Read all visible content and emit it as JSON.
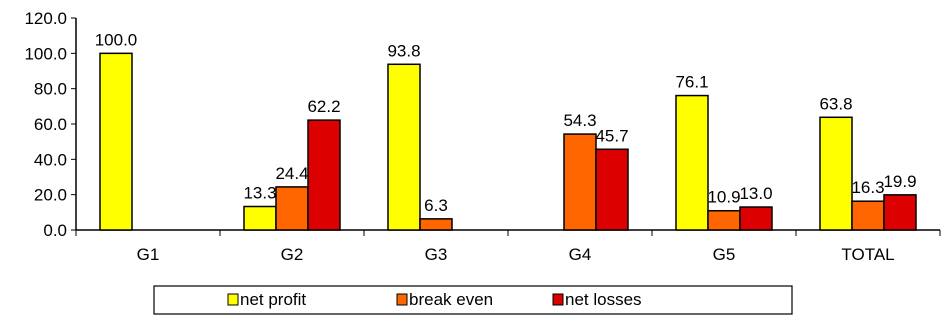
{
  "chart_data": {
    "type": "bar",
    "title": "",
    "xlabel": "",
    "ylabel": "",
    "categories": [
      "G1",
      "G2",
      "G3",
      "G4",
      "G5",
      "TOTAL"
    ],
    "ylim": [
      0,
      120
    ],
    "yticks": [
      0,
      20,
      40,
      60,
      80,
      100,
      120
    ],
    "ytick_labels": [
      "0.0",
      "20.0",
      "40.0",
      "60.0",
      "80.0",
      "100.0",
      "120.0"
    ],
    "grid": false,
    "legend_position": "bottom",
    "series": [
      {
        "name": "net profit",
        "color": "#FFFF00",
        "values": [
          100.0,
          13.3,
          93.8,
          null,
          76.1,
          63.8
        ],
        "labels": [
          "100.0",
          "13.3",
          "93.8",
          null,
          "76.1",
          "63.8"
        ]
      },
      {
        "name": "break even",
        "color": "#FF6600",
        "values": [
          null,
          24.4,
          6.3,
          54.3,
          10.9,
          16.3
        ],
        "labels": [
          null,
          "24.4",
          "6.3",
          "54.3",
          "10.9",
          "16.3"
        ]
      },
      {
        "name": "net losses",
        "color": "#DD0000",
        "values": [
          null,
          62.2,
          null,
          45.7,
          13.0,
          19.9
        ],
        "labels": [
          null,
          "62.2",
          null,
          "45.7",
          "13.0",
          "19.9"
        ]
      }
    ]
  }
}
